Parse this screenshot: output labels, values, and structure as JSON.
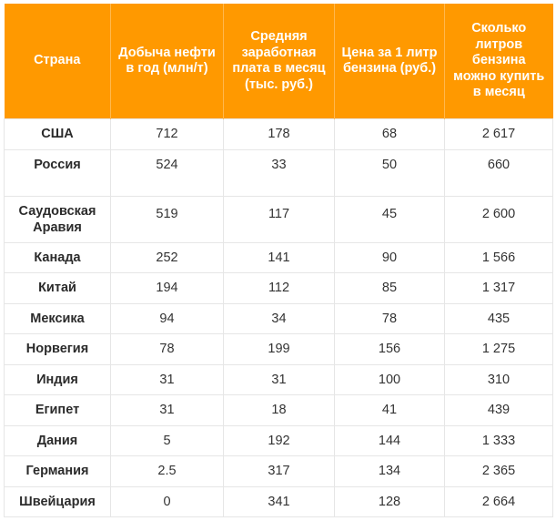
{
  "table": {
    "headers": [
      "Страна",
      "Добыча нефти в год (млн/т)",
      "Средняя заработная плата в месяц (тыс. руб.)",
      "Цена за 1 литр бензина (руб.)",
      "Сколько литров бензина можно купить в месяц"
    ],
    "rows": [
      [
        "США",
        "712",
        "178",
        "68",
        "2 617"
      ],
      [
        "Россия",
        "524",
        "33",
        "50",
        "660"
      ],
      [
        "Саудовская Аравия",
        "519",
        "117",
        "45",
        "2 600"
      ],
      [
        "Канада",
        "252",
        "141",
        "90",
        "1 566"
      ],
      [
        "Китай",
        "194",
        "112",
        "85",
        "1 317"
      ],
      [
        "Мексика",
        "94",
        "34",
        "78",
        "435"
      ],
      [
        "Норвегия",
        "78",
        "199",
        "156",
        "1 275"
      ],
      [
        "Индия",
        "31",
        "31",
        "100",
        "310"
      ],
      [
        "Египет",
        "31",
        "18",
        "41",
        "439"
      ],
      [
        "Дания",
        "5",
        "192",
        "144",
        "1 333"
      ],
      [
        "Германия",
        "2.5",
        "317",
        "134",
        "2 365"
      ],
      [
        "Швейцария",
        "0",
        "341",
        "128",
        "2 664"
      ]
    ]
  },
  "colors": {
    "header_bg": "#ff9900",
    "header_text": "#ffffff",
    "border": "#e6e6e6"
  }
}
